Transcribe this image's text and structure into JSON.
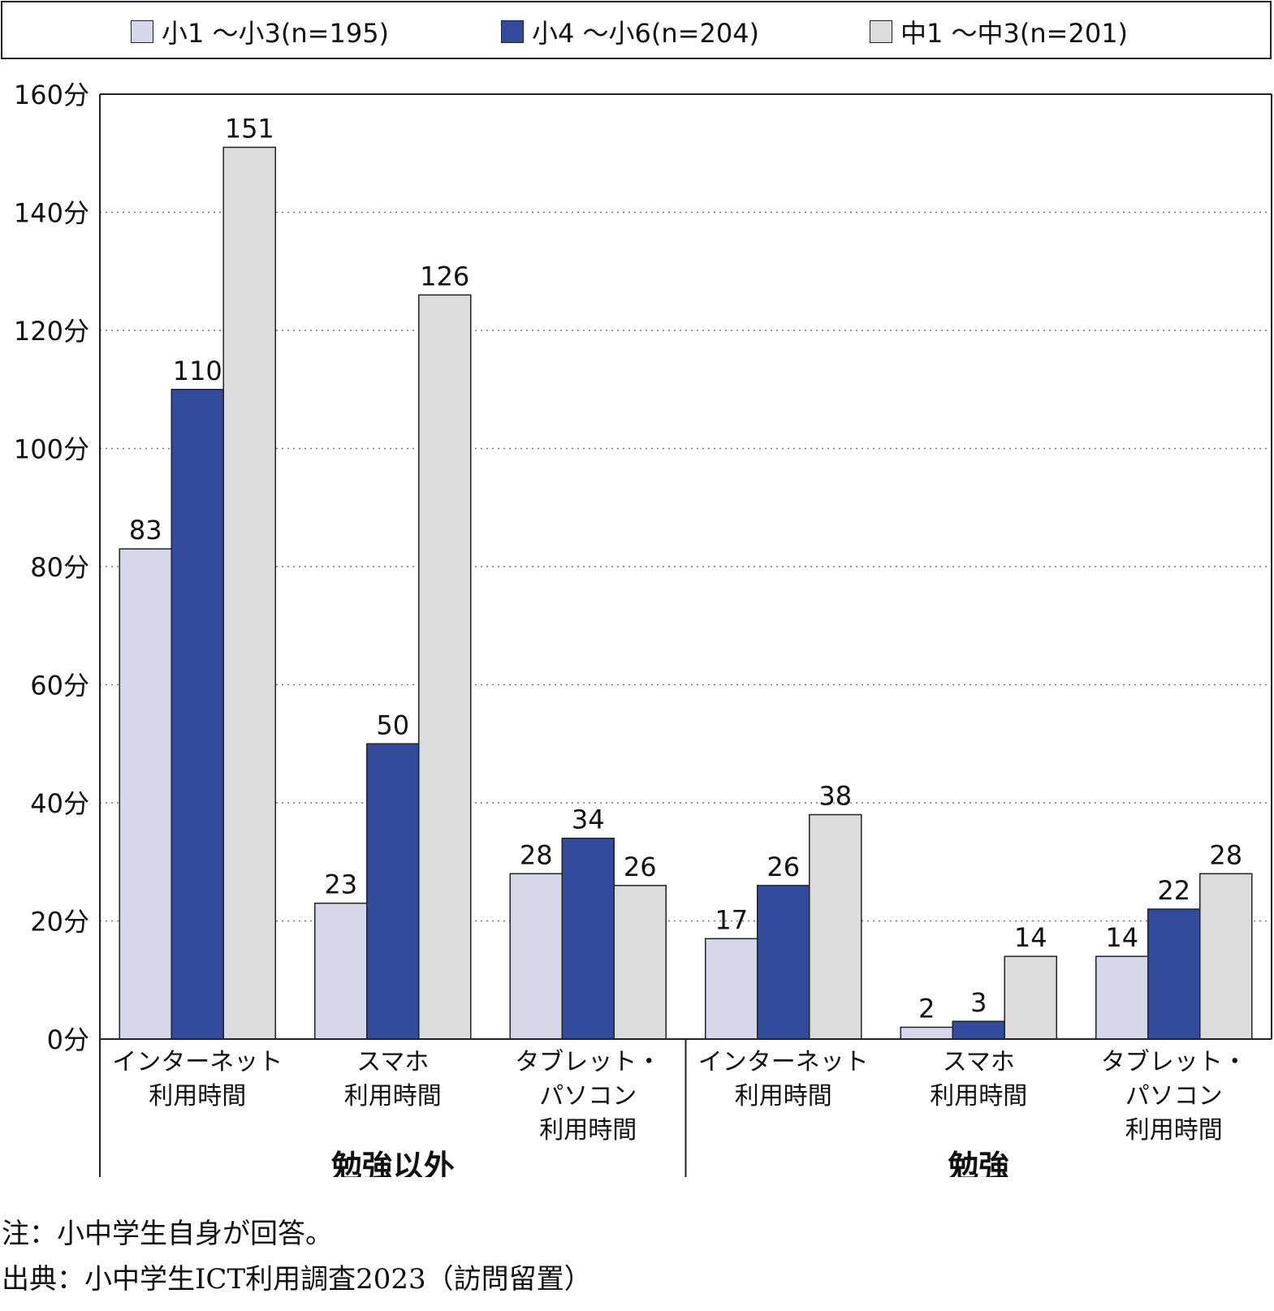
{
  "legend": [
    {
      "label": "小1 ～小3(n=195)",
      "color": "#d6d8ea"
    },
    {
      "label": "小4 ～小6(n=204)",
      "color": "#324b9c"
    },
    {
      "label": "中1 ～中3(n=201)",
      "color": "#dcdcdc"
    }
  ],
  "chart_data": {
    "type": "bar",
    "categories": [
      {
        "lines": [
          "インターネット",
          "利用時間"
        ],
        "group": "勉強以外"
      },
      {
        "lines": [
          "スマホ",
          "利用時間"
        ],
        "group": "勉強以外"
      },
      {
        "lines": [
          "タブレット・",
          "パソコン",
          "利用時間"
        ],
        "group": "勉強以外"
      },
      {
        "lines": [
          "インターネット",
          "利用時間"
        ],
        "group": "勉強"
      },
      {
        "lines": [
          "スマホ",
          "利用時間"
        ],
        "group": "勉強"
      },
      {
        "lines": [
          "タブレット・",
          "パソコン",
          "利用時間"
        ],
        "group": "勉強"
      }
    ],
    "groups": [
      "勉強以外",
      "勉強"
    ],
    "series": [
      {
        "name": "小1 ～小3(n=195)",
        "values": [
          83,
          23,
          28,
          17,
          2,
          14
        ]
      },
      {
        "name": "小4 ～小6(n=204)",
        "values": [
          110,
          50,
          34,
          26,
          3,
          22
        ]
      },
      {
        "name": "中1 ～中3(n=201)",
        "values": [
          151,
          126,
          26,
          38,
          14,
          28
        ]
      }
    ],
    "yticks": [
      "0分",
      "20分",
      "40分",
      "60分",
      "80分",
      "100分",
      "120分",
      "140分",
      "160分"
    ],
    "ylim": [
      0,
      160
    ],
    "grid": true,
    "legend_position": "top"
  },
  "notes": {
    "note": "注：小中学生自身が回答。",
    "source": "出典：小中学生ICT利用調査2023（訪問留置）"
  }
}
